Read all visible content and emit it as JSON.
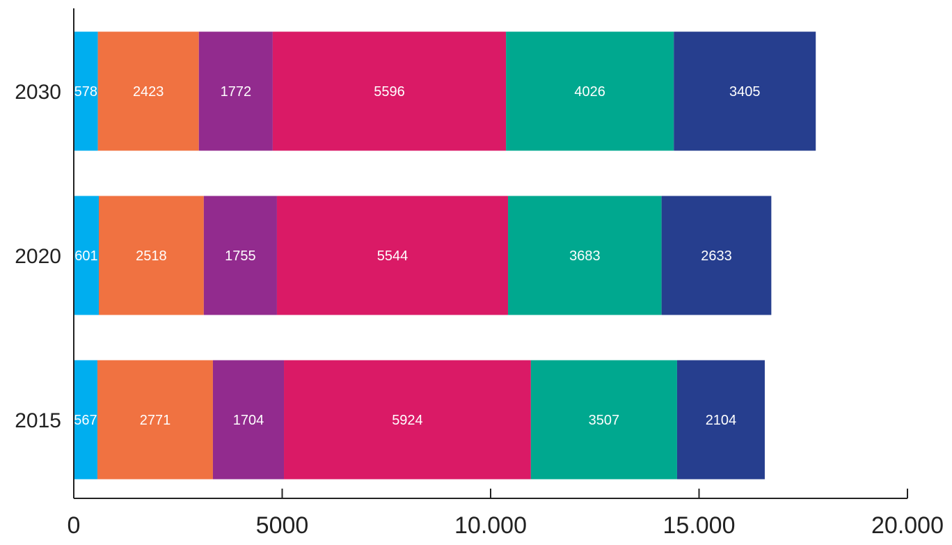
{
  "chart_data": {
    "type": "bar",
    "orientation": "horizontal",
    "stacked": true,
    "title": "",
    "xlabel": "",
    "ylabel": "",
    "categories": [
      "2015",
      "2020",
      "2030"
    ],
    "series": [
      {
        "color": "#00aeef",
        "values": [
          567,
          601,
          578
        ]
      },
      {
        "color": "#f07241",
        "values": [
          2771,
          2518,
          2423
        ]
      },
      {
        "color": "#922b8e",
        "values": [
          1704,
          1755,
          1772
        ]
      },
      {
        "color": "#da1a66",
        "values": [
          5924,
          5544,
          5596
        ]
      },
      {
        "color": "#00a88f",
        "values": [
          3507,
          3683,
          4026
        ]
      },
      {
        "color": "#263e8e",
        "values": [
          2104,
          2633,
          3405
        ]
      }
    ],
    "xlim": [
      0,
      20000
    ],
    "x_ticks": [
      {
        "value": 0,
        "label": "0"
      },
      {
        "value": 5000,
        "label": "5000"
      },
      {
        "value": 10000,
        "label": "10.000"
      },
      {
        "value": 15000,
        "label": "15.000"
      },
      {
        "value": 20000,
        "label": "20.000"
      }
    ],
    "data_labels": true,
    "legend": "none",
    "grid": false
  }
}
